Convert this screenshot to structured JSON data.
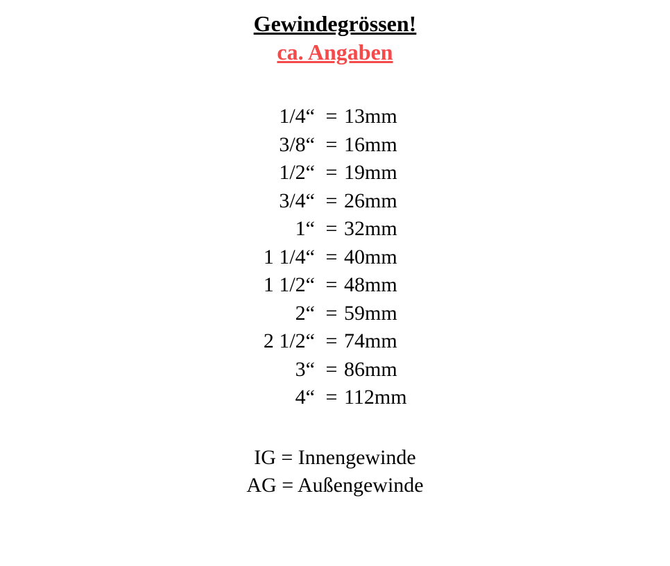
{
  "header": {
    "title": "Gewindegrössen!",
    "subtitle": "ca. Angaben",
    "title_color": "#000000",
    "subtitle_color": "#f54a4a",
    "title_fontsize": 32,
    "subtitle_fontsize": 32,
    "underline": true,
    "bold": true
  },
  "table": {
    "type": "table",
    "font_family": "Georgia, serif",
    "fontsize": 30,
    "text_color": "#000000",
    "background_color": "#ffffff",
    "columns": [
      "inch_size",
      "equals",
      "mm_value"
    ],
    "col_inch_width": 112,
    "col_eq_width": 40,
    "col_mm_width": 130,
    "rows": [
      {
        "inch": "1/4“",
        "eq": "=",
        "mm": "13mm"
      },
      {
        "inch": "3/8“",
        "eq": "=",
        "mm": "16mm"
      },
      {
        "inch": "1/2“",
        "eq": "=",
        "mm": "19mm"
      },
      {
        "inch": "3/4“",
        "eq": "=",
        "mm": "26mm"
      },
      {
        "inch": "1“",
        "eq": "=",
        "mm": "32mm"
      },
      {
        "inch": "1 1/4“",
        "eq": "=",
        "mm": "40mm"
      },
      {
        "inch": "1 1/2“",
        "eq": "=",
        "mm": "48mm"
      },
      {
        "inch": "2“",
        "eq": "=",
        "mm": "59mm"
      },
      {
        "inch": "2 1/2“",
        "eq": "=",
        "mm": "74mm"
      },
      {
        "inch": "3“",
        "eq": "=",
        "mm": "86mm"
      },
      {
        "inch": "4“",
        "eq": "=",
        "mm": "112mm"
      }
    ]
  },
  "legend": {
    "fontsize": 30,
    "text_color": "#000000",
    "lines": [
      "IG = Innengewinde",
      "AG = Außengewinde"
    ]
  }
}
